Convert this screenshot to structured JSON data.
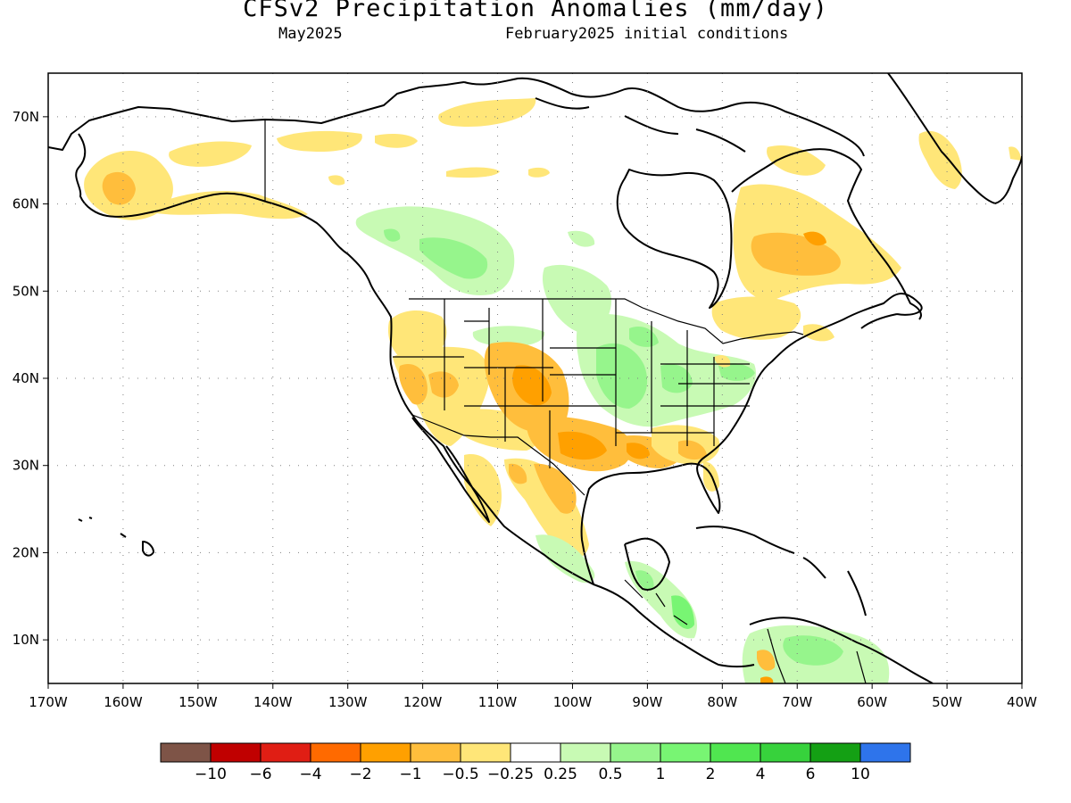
{
  "title": "CFSv2 Precipitation Anomalies (mm/day)",
  "valid_month": "May2025",
  "initial_conditions": "February2025 initial conditions",
  "map": {
    "lon_range": [
      -170,
      -40
    ],
    "lat_range": [
      5,
      75
    ],
    "lon_ticks": [
      "170W",
      "160W",
      "150W",
      "140W",
      "130W",
      "120W",
      "110W",
      "100W",
      "90W",
      "80W",
      "70W",
      "60W",
      "50W",
      "40W"
    ],
    "lat_ticks": [
      "10N",
      "20N",
      "30N",
      "40N",
      "50N",
      "60N",
      "70N"
    ],
    "grid": "dotted"
  },
  "colorbar": {
    "colors": [
      "#7e5447",
      "#c00000",
      "#e01e14",
      "#ff6a00",
      "#ffa000",
      "#ffbe3c",
      "#ffe678",
      "#ffffff",
      "#c8fab4",
      "#96f58c",
      "#78f573",
      "#50e650",
      "#37d23c",
      "#14a014",
      "#2e74eb"
    ],
    "labels": [
      "−10",
      "−6",
      "−4",
      "−2",
      "−1",
      "−0.5",
      "−0.25",
      "0.25",
      "0.5",
      "1",
      "2",
      "4",
      "6",
      "10"
    ]
  },
  "anomaly_regions": [
    {
      "name": "western-alaska-dry",
      "category": "-0.5"
    },
    {
      "name": "yukon-dry",
      "category": "-0.25"
    },
    {
      "name": "northern-canada-wet",
      "category": "0.5"
    },
    {
      "name": "southwest-us-dry",
      "category": "-1"
    },
    {
      "name": "southern-plains-dry",
      "category": "-1"
    },
    {
      "name": "midwest-wet",
      "category": "0.5"
    },
    {
      "name": "gulf-coast-dry",
      "category": "-0.5"
    },
    {
      "name": "mexico-dry",
      "category": "-0.5"
    },
    {
      "name": "quebec-labrador-dry",
      "category": "-0.5"
    },
    {
      "name": "central-america-wet",
      "category": "1"
    },
    {
      "name": "northern-south-america-wet",
      "category": "1"
    },
    {
      "name": "greenland-dry",
      "category": "-0.25"
    }
  ]
}
